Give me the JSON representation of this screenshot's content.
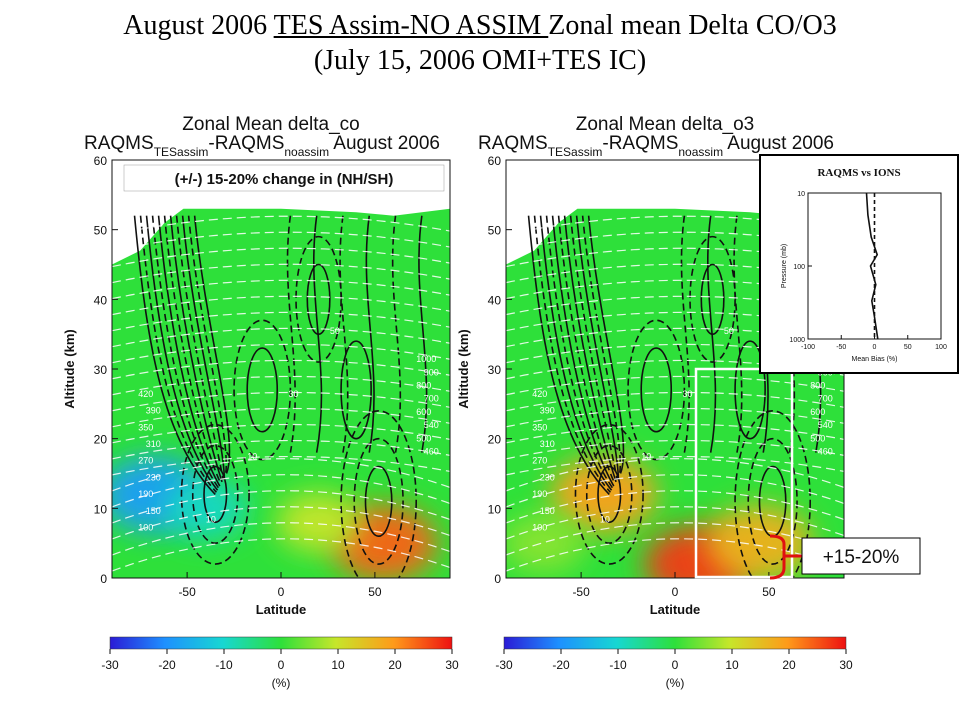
{
  "slide": {
    "title_pre": "August 2006 ",
    "title_underlined": "TES Assim-NO ASSIM ",
    "title_post": "Zonal mean Delta CO/O3",
    "subtitle": "(July 15, 2006 OMI+TES IC)"
  },
  "chart_data": [
    {
      "type": "heatmap",
      "title": "Zonal Mean delta_co",
      "subtitle_parts": [
        "RAQMS",
        "TESassim",
        "-RAQMS",
        "noassim",
        "August 2006"
      ],
      "xlabel": "Latitude",
      "ylabel": "Altitude (km)",
      "xlim": [
        -90,
        90
      ],
      "ylim": [
        0,
        60
      ],
      "xticks": [
        -50,
        0,
        50
      ],
      "yticks": [
        0,
        10,
        20,
        30,
        40,
        50,
        60
      ],
      "annotation": "(+/-) 15-20% change in (NH/SH)",
      "colorbar": {
        "min": -30,
        "max": 30,
        "ticks": [
          -30,
          -20,
          -10,
          0,
          10,
          20,
          30
        ],
        "label": "(%)"
      },
      "contour_labels": [
        "1000",
        "900",
        "800",
        "700",
        "600",
        "540",
        "500",
        "460",
        "420",
        "390",
        "350",
        "310",
        "270",
        "230",
        "190",
        "150",
        "100",
        "10",
        "10",
        "30",
        "50"
      ],
      "anomalies": [
        {
          "lat": -68,
          "alt": 12,
          "value": -18
        },
        {
          "lat": -40,
          "alt": 10,
          "value": -9
        },
        {
          "lat": 55,
          "alt": 5,
          "value": 24
        },
        {
          "lat": 20,
          "alt": 8,
          "value": 10
        }
      ]
    },
    {
      "type": "heatmap",
      "title": "Zonal Mean delta_o3",
      "subtitle_parts": [
        "RAQMS",
        "TESassim",
        "-RAQMS",
        "noassim",
        "August 2006"
      ],
      "xlabel": "Latitude",
      "ylabel": "Altitude (km)",
      "xlim": [
        -90,
        90
      ],
      "ylim": [
        0,
        60
      ],
      "xticks": [
        -50,
        0,
        50
      ],
      "yticks": [
        0,
        10,
        20,
        30,
        40,
        50,
        60
      ],
      "colorbar": {
        "min": -30,
        "max": 30,
        "ticks": [
          -30,
          -20,
          -10,
          0,
          10,
          20,
          30
        ],
        "label": "(%)"
      },
      "contour_labels": [
        "1000",
        "900",
        "800",
        "700",
        "600",
        "540",
        "500",
        "460",
        "420",
        "390",
        "350",
        "310",
        "270",
        "230",
        "190",
        "150",
        "100",
        "10",
        "10",
        "30",
        "50"
      ],
      "anomalies": [
        {
          "lat": -38,
          "alt": 12,
          "value": 19
        },
        {
          "lat": 12,
          "alt": 2,
          "value": 27
        },
        {
          "lat": 45,
          "alt": 5,
          "value": 17
        },
        {
          "lat": -70,
          "alt": 5,
          "value": 6
        }
      ],
      "callout": "+15-20%"
    },
    {
      "type": "line",
      "title": "RAQMS vs IONS",
      "xlabel": "Mean Bias (%)",
      "ylabel": "Pressure (mb)",
      "xlim": [
        -100,
        100
      ],
      "ylim": [
        1000,
        10
      ],
      "y_scale": "log",
      "xticks": [
        -100,
        -50,
        0,
        50,
        100
      ],
      "yticks": [
        10,
        100,
        1000
      ],
      "series": [
        {
          "style": "solid",
          "points": [
            [
              -12,
              10
            ],
            [
              -10,
              20
            ],
            [
              -5,
              40
            ],
            [
              4,
              70
            ],
            [
              -6,
              100
            ],
            [
              2,
              180
            ],
            [
              -4,
              300
            ],
            [
              0,
              500
            ],
            [
              5,
              1000
            ]
          ]
        },
        {
          "style": "dashed",
          "points": [
            [
              0,
              10
            ],
            [
              0,
              1000
            ]
          ]
        }
      ]
    }
  ]
}
